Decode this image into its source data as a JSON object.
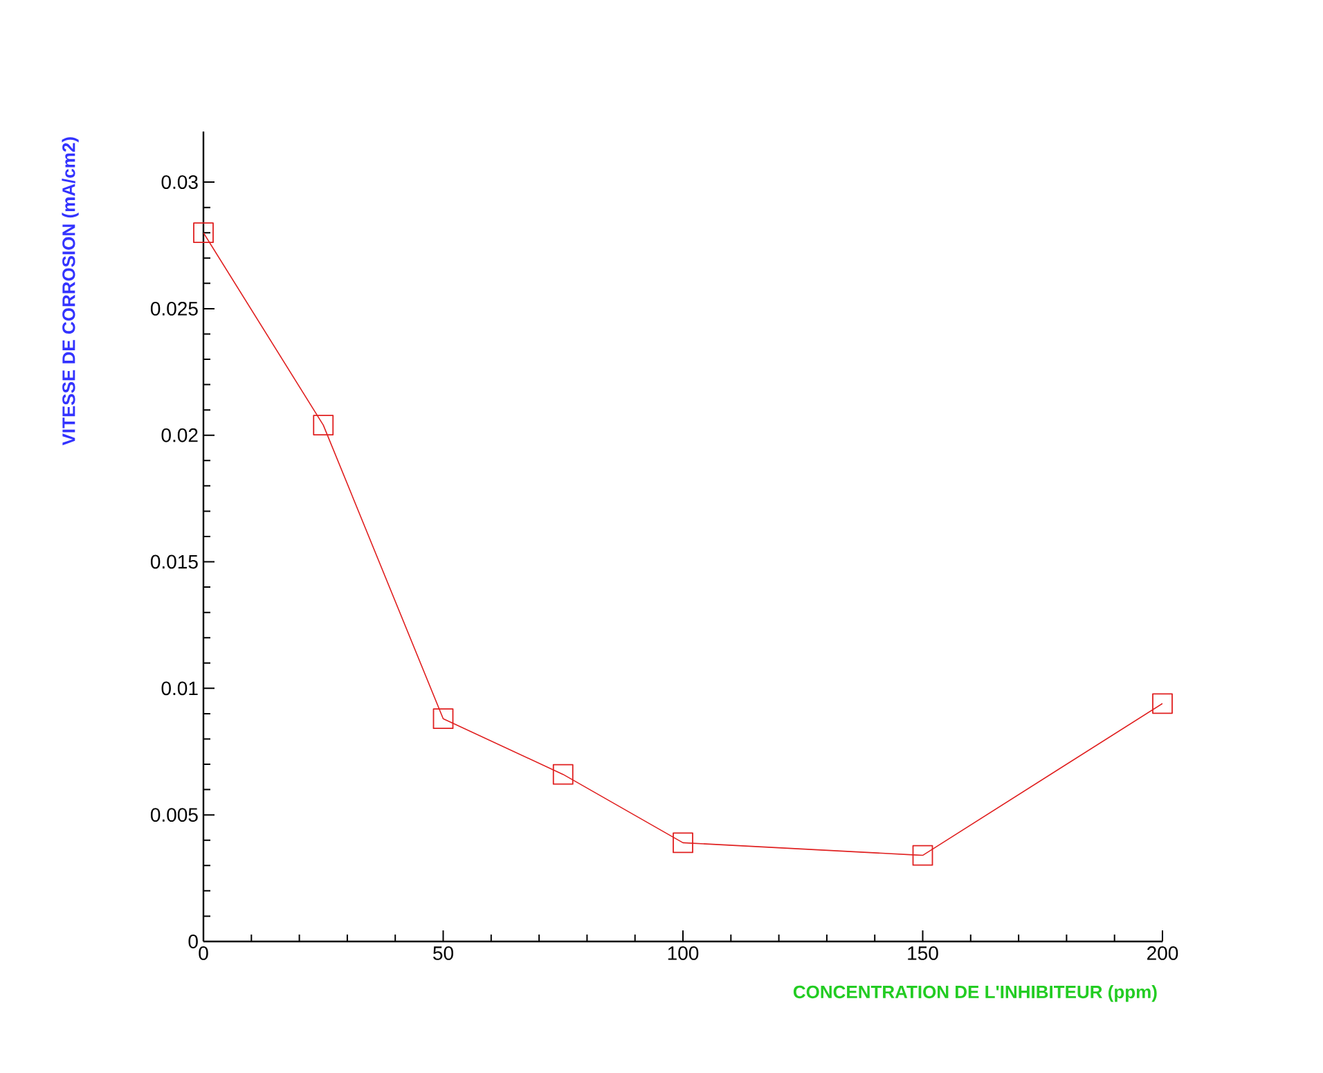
{
  "chart_data": {
    "type": "line",
    "xlabel": "CONCENTRATION DE L'INHIBITEUR      (ppm)",
    "ylabel": "VITESSE DE CORROSION    (mA/cm2)",
    "x": [
      0,
      25,
      50,
      75,
      100,
      150,
      200
    ],
    "series": [
      {
        "color": "#e02020",
        "values": [
          0.028,
          0.0204,
          0.0088,
          0.0066,
          0.0039,
          0.0034,
          0.0094
        ]
      }
    ],
    "xlim": [
      0,
      200
    ],
    "ylim": [
      0,
      0.032
    ],
    "xticks": [
      0,
      50,
      100,
      150,
      200
    ],
    "yticks": [
      0,
      0.005,
      0.01,
      0.015,
      0.02,
      0.025,
      0.03
    ],
    "marker": "square",
    "line_style": "solid"
  }
}
